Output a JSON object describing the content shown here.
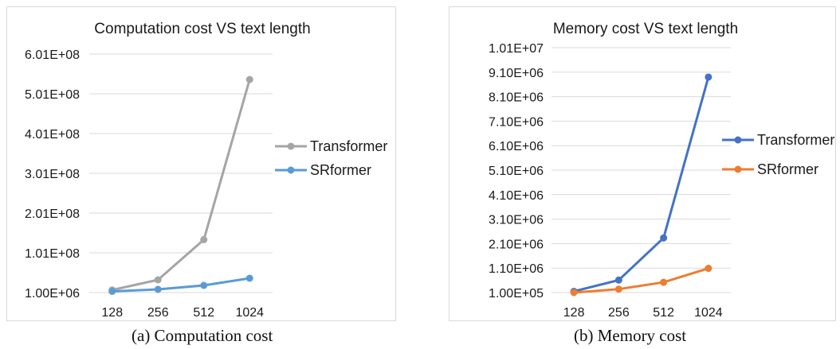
{
  "chart_data": [
    {
      "type": "line",
      "title": "Computation cost VS text length",
      "caption": "(a) Computation cost",
      "categories": [
        "128",
        "256",
        "512",
        "1024"
      ],
      "y_ticks": [
        "1.00E+06",
        "1.01E+08",
        "2.01E+08",
        "3.01E+08",
        "4.01E+08",
        "5.01E+08",
        "6.01E+08"
      ],
      "ylim": [
        1000000,
        601000000
      ],
      "grid": "horizontal",
      "legend_position": "right",
      "series": [
        {
          "name": "Transformer",
          "color": "#a5a5a5",
          "values": [
            7500000,
            33000000,
            134000000,
            537000000
          ]
        },
        {
          "name": "SRformer",
          "color": "#5b9bd5",
          "values": [
            4000000,
            9000000,
            19000000,
            37000000
          ]
        }
      ]
    },
    {
      "type": "line",
      "title": "Memory cost VS text length",
      "caption": "(b) Memory cost",
      "categories": [
        "128",
        "256",
        "512",
        "1024"
      ],
      "y_ticks": [
        "1.00E+05",
        "1.10E+06",
        "2.10E+06",
        "3.10E+06",
        "4.10E+06",
        "5.10E+06",
        "6.10E+06",
        "7.10E+06",
        "8.10E+06",
        "9.10E+06",
        "1.01E+07"
      ],
      "ylim": [
        100000,
        10100000
      ],
      "grid": "horizontal",
      "legend_position": "right",
      "series": [
        {
          "name": "Transformer",
          "color": "#4472c4",
          "values": [
            150000,
            610000,
            2330000,
            8900000
          ]
        },
        {
          "name": "SRformer",
          "color": "#ed7d31",
          "values": [
            100000,
            240000,
            520000,
            1090000
          ]
        }
      ]
    }
  ]
}
